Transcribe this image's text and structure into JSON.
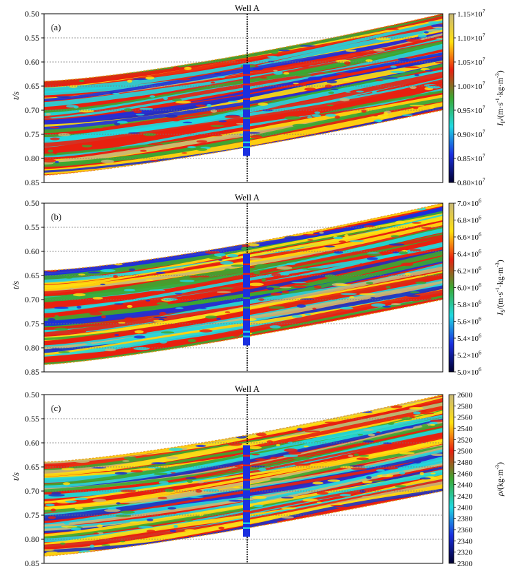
{
  "panels": [
    {
      "id": "a",
      "label": "(a)",
      "well_label": "Well A",
      "ylabel": "t/s",
      "yticks": [
        "0.50",
        "0.55",
        "0.60",
        "0.65",
        "0.70",
        "0.75",
        "0.80",
        "0.85"
      ],
      "ylim": [
        0.85,
        0.5
      ],
      "colorbar": {
        "label": "I_P/(m·s⁻¹·kg·m⁻³)",
        "label_main": "I",
        "label_sub": "P",
        "label_rest": "/(m·s",
        "label_sup1": "-1",
        "label_mid": "·kg·m",
        "label_sup2": "-3",
        "label_end": ")",
        "range": [
          8000000,
          11500000
        ],
        "ticks": [
          {
            "mantissa": "1.15×10",
            "exp": "7",
            "value": 11500000
          },
          {
            "mantissa": "1.10×10",
            "exp": "7",
            "value": 11000000
          },
          {
            "mantissa": "1.05×10",
            "exp": "7",
            "value": 10500000
          },
          {
            "mantissa": "1.00×10",
            "exp": "7",
            "value": 10000000
          },
          {
            "mantissa": "0.95×10",
            "exp": "7",
            "value": 9500000
          },
          {
            "mantissa": "0.90×10",
            "exp": "7",
            "value": 9000000
          },
          {
            "mantissa": "0.85×10",
            "exp": "7",
            "value": 8500000
          },
          {
            "mantissa": "0.80×10",
            "exp": "7",
            "value": 8000000
          }
        ]
      }
    },
    {
      "id": "b",
      "label": "(b)",
      "well_label": "Well A",
      "ylabel": "t/s",
      "yticks": [
        "0.50",
        "0.55",
        "0.60",
        "0.65",
        "0.70",
        "0.75",
        "0.80",
        "0.85"
      ],
      "ylim": [
        0.85,
        0.5
      ],
      "colorbar": {
        "label": "I_S/(m·s⁻¹·kg·m⁻³)",
        "label_main": "I",
        "label_sub": "S",
        "label_rest": "/(m·s",
        "label_sup1": "-1",
        "label_mid": "·kg·m",
        "label_sup2": "-3",
        "label_end": ")",
        "range": [
          5000000,
          7000000
        ],
        "ticks": [
          {
            "mantissa": "7.0×10",
            "exp": "6",
            "value": 7000000
          },
          {
            "mantissa": "6.8×10",
            "exp": "6",
            "value": 6800000
          },
          {
            "mantissa": "6.6×10",
            "exp": "6",
            "value": 6600000
          },
          {
            "mantissa": "6.4×10",
            "exp": "6",
            "value": 6400000
          },
          {
            "mantissa": "6.2×10",
            "exp": "6",
            "value": 6200000
          },
          {
            "mantissa": "6.0×10",
            "exp": "6",
            "value": 6000000
          },
          {
            "mantissa": "5.8×10",
            "exp": "6",
            "value": 5800000
          },
          {
            "mantissa": "5.6×10",
            "exp": "6",
            "value": 5600000
          },
          {
            "mantissa": "5.4×10",
            "exp": "6",
            "value": 5400000
          },
          {
            "mantissa": "5.2×10",
            "exp": "6",
            "value": 5200000
          },
          {
            "mantissa": "5.0×10",
            "exp": "6",
            "value": 5000000
          }
        ]
      }
    },
    {
      "id": "c",
      "label": "(c)",
      "well_label": "Well A",
      "ylabel": "t/s",
      "yticks": [
        "0.50",
        "0.55",
        "0.60",
        "0.65",
        "0.70",
        "0.75",
        "0.80",
        "0.85"
      ],
      "ylim": [
        0.85,
        0.5
      ],
      "colorbar": {
        "label": "ρ/(kg·m⁻³)",
        "label_main": "ρ",
        "label_sub": "",
        "label_rest": "/(kg·m",
        "label_sup1": "-3",
        "label_mid": "",
        "label_sup2": "",
        "label_end": ")",
        "range": [
          2300,
          2600
        ],
        "ticks": [
          {
            "mantissa": "2600",
            "exp": "",
            "value": 2600
          },
          {
            "mantissa": "2580",
            "exp": "",
            "value": 2580
          },
          {
            "mantissa": "2560",
            "exp": "",
            "value": 2560
          },
          {
            "mantissa": "2540",
            "exp": "",
            "value": 2540
          },
          {
            "mantissa": "2520",
            "exp": "",
            "value": 2520
          },
          {
            "mantissa": "2500",
            "exp": "",
            "value": 2500
          },
          {
            "mantissa": "2480",
            "exp": "",
            "value": 2480
          },
          {
            "mantissa": "2460",
            "exp": "",
            "value": 2460
          },
          {
            "mantissa": "2440",
            "exp": "",
            "value": 2440
          },
          {
            "mantissa": "2420",
            "exp": "",
            "value": 2420
          },
          {
            "mantissa": "2400",
            "exp": "",
            "value": 2400
          },
          {
            "mantissa": "2380",
            "exp": "",
            "value": 2380
          },
          {
            "mantissa": "2360",
            "exp": "",
            "value": 2360
          },
          {
            "mantissa": "2340",
            "exp": "",
            "value": 2340
          },
          {
            "mantissa": "2320",
            "exp": "",
            "value": 2320
          },
          {
            "mantissa": "2300",
            "exp": "",
            "value": 2300
          }
        ]
      }
    }
  ],
  "chart_data": [
    {
      "type": "heatmap",
      "panel": "a",
      "ylabel": "t/s",
      "ylim": [
        0.85,
        0.5
      ],
      "grid": true,
      "colorbar_label": "I_P/(m·s⁻¹·kg·m⁻³)",
      "color_range": [
        8000000,
        11500000
      ],
      "annotation": "Well A",
      "colors": [
        "#000030",
        "#1a2fe0",
        "#20d8e0",
        "#3aa832",
        "#e82010",
        "#ffe010",
        "#c8b878"
      ]
    },
    {
      "type": "heatmap",
      "panel": "b",
      "ylabel": "t/s",
      "ylim": [
        0.85,
        0.5
      ],
      "grid": true,
      "colorbar_label": "I_S/(m·s⁻¹·kg·m⁻³)",
      "color_range": [
        5000000,
        7000000
      ],
      "annotation": "Well A",
      "colors": [
        "#000030",
        "#1a2fe0",
        "#20d8e0",
        "#3aa832",
        "#e82010",
        "#ffe010",
        "#c8b878"
      ]
    },
    {
      "type": "heatmap",
      "panel": "c",
      "ylabel": "t/s",
      "ylim": [
        0.85,
        0.5
      ],
      "grid": true,
      "colorbar_label": "ρ/(kg·m⁻³)",
      "color_range": [
        2300,
        2600
      ],
      "annotation": "Well A",
      "colors": [
        "#000030",
        "#1a2fe0",
        "#20d8e0",
        "#3aa832",
        "#e82010",
        "#ffe010",
        "#c8b878"
      ]
    }
  ]
}
